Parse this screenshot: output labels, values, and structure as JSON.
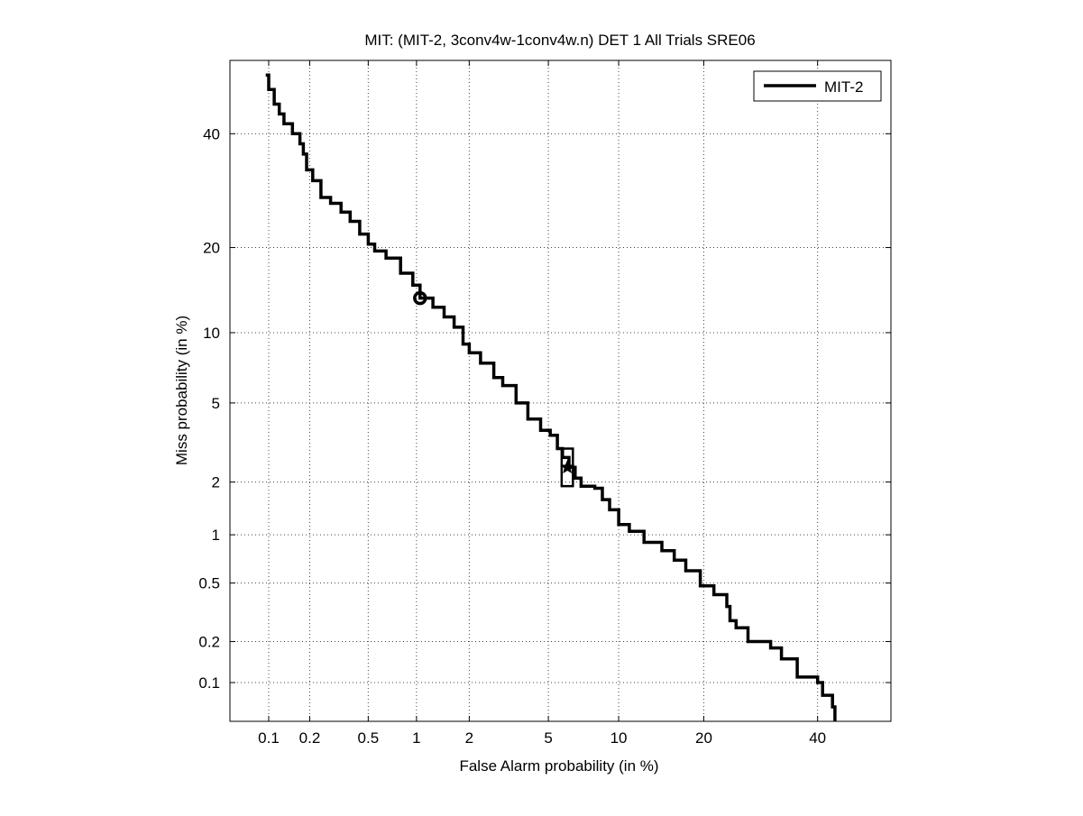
{
  "chart_data": {
    "type": "line",
    "title": "MIT: (MIT-2, 3conv4w-1conv4w.n) DET 1 All Trials SRE06",
    "xlabel": "False Alarm probability (in %)",
    "ylabel": "Miss probability (in %)",
    "x_scale": "probit",
    "y_scale": "probit",
    "xlim": [
      0.05,
      55
    ],
    "ylim": [
      0.05,
      55
    ],
    "xticks": [
      0.1,
      0.2,
      0.5,
      1,
      2,
      5,
      10,
      20,
      40
    ],
    "xtick_labels": [
      "0.1",
      "0.2",
      "0.5",
      "1",
      "2",
      "5",
      "10",
      "20",
      "40"
    ],
    "yticks": [
      0.1,
      0.2,
      0.5,
      1,
      2,
      5,
      10,
      20,
      40
    ],
    "ytick_labels": [
      "0.1",
      "0.2",
      "0.5",
      "1",
      "2",
      "5",
      "10",
      "20",
      "40"
    ],
    "grid": true,
    "legend": {
      "position": "top-right",
      "entries": [
        "MIT-2"
      ]
    },
    "series": [
      {
        "name": "MIT-2",
        "color": "#000000",
        "points": [
          [
            0.095,
            52
          ],
          [
            0.1,
            49
          ],
          [
            0.11,
            46
          ],
          [
            0.12,
            44
          ],
          [
            0.13,
            42
          ],
          [
            0.15,
            40
          ],
          [
            0.17,
            38
          ],
          [
            0.18,
            36
          ],
          [
            0.19,
            33
          ],
          [
            0.21,
            31
          ],
          [
            0.24,
            28
          ],
          [
            0.28,
            27
          ],
          [
            0.33,
            25.5
          ],
          [
            0.38,
            24
          ],
          [
            0.44,
            22
          ],
          [
            0.5,
            20.5
          ],
          [
            0.55,
            19.5
          ],
          [
            0.65,
            18.5
          ],
          [
            0.8,
            16.5
          ],
          [
            0.95,
            15
          ],
          [
            1.05,
            13.5
          ],
          [
            1.25,
            12.5
          ],
          [
            1.45,
            11.5
          ],
          [
            1.65,
            10.5
          ],
          [
            1.85,
            9
          ],
          [
            2.0,
            8.3
          ],
          [
            2.3,
            7.5
          ],
          [
            2.7,
            6.5
          ],
          [
            3.0,
            6.0
          ],
          [
            3.5,
            5.0
          ],
          [
            4.0,
            4.2
          ],
          [
            4.6,
            3.7
          ],
          [
            5.1,
            3.5
          ],
          [
            5.5,
            3.0
          ],
          [
            5.8,
            2.7
          ],
          [
            6.2,
            2.4
          ],
          [
            6.6,
            2.1
          ],
          [
            7.0,
            1.9
          ],
          [
            8.0,
            1.85
          ],
          [
            8.6,
            1.6
          ],
          [
            9.2,
            1.4
          ],
          [
            10.0,
            1.15
          ],
          [
            11.0,
            1.05
          ],
          [
            12.5,
            0.9
          ],
          [
            14.5,
            0.8
          ],
          [
            16,
            0.7
          ],
          [
            17.5,
            0.6
          ],
          [
            19.5,
            0.48
          ],
          [
            21.5,
            0.42
          ],
          [
            23.5,
            0.35
          ],
          [
            24,
            0.28
          ],
          [
            25,
            0.25
          ],
          [
            27,
            0.2
          ],
          [
            31,
            0.18
          ],
          [
            33,
            0.15
          ],
          [
            36,
            0.11
          ],
          [
            40,
            0.1
          ],
          [
            41,
            0.08
          ],
          [
            43,
            0.065
          ],
          [
            43.5,
            0.05
          ]
        ]
      }
    ],
    "markers": [
      {
        "type": "circle",
        "x": 1.05,
        "y": 13.5
      },
      {
        "type": "star",
        "x": 6.1,
        "y": 2.4
      },
      {
        "type": "box",
        "x": [
          5.75,
          6.45
        ],
        "y": [
          1.9,
          3.0
        ]
      }
    ]
  }
}
